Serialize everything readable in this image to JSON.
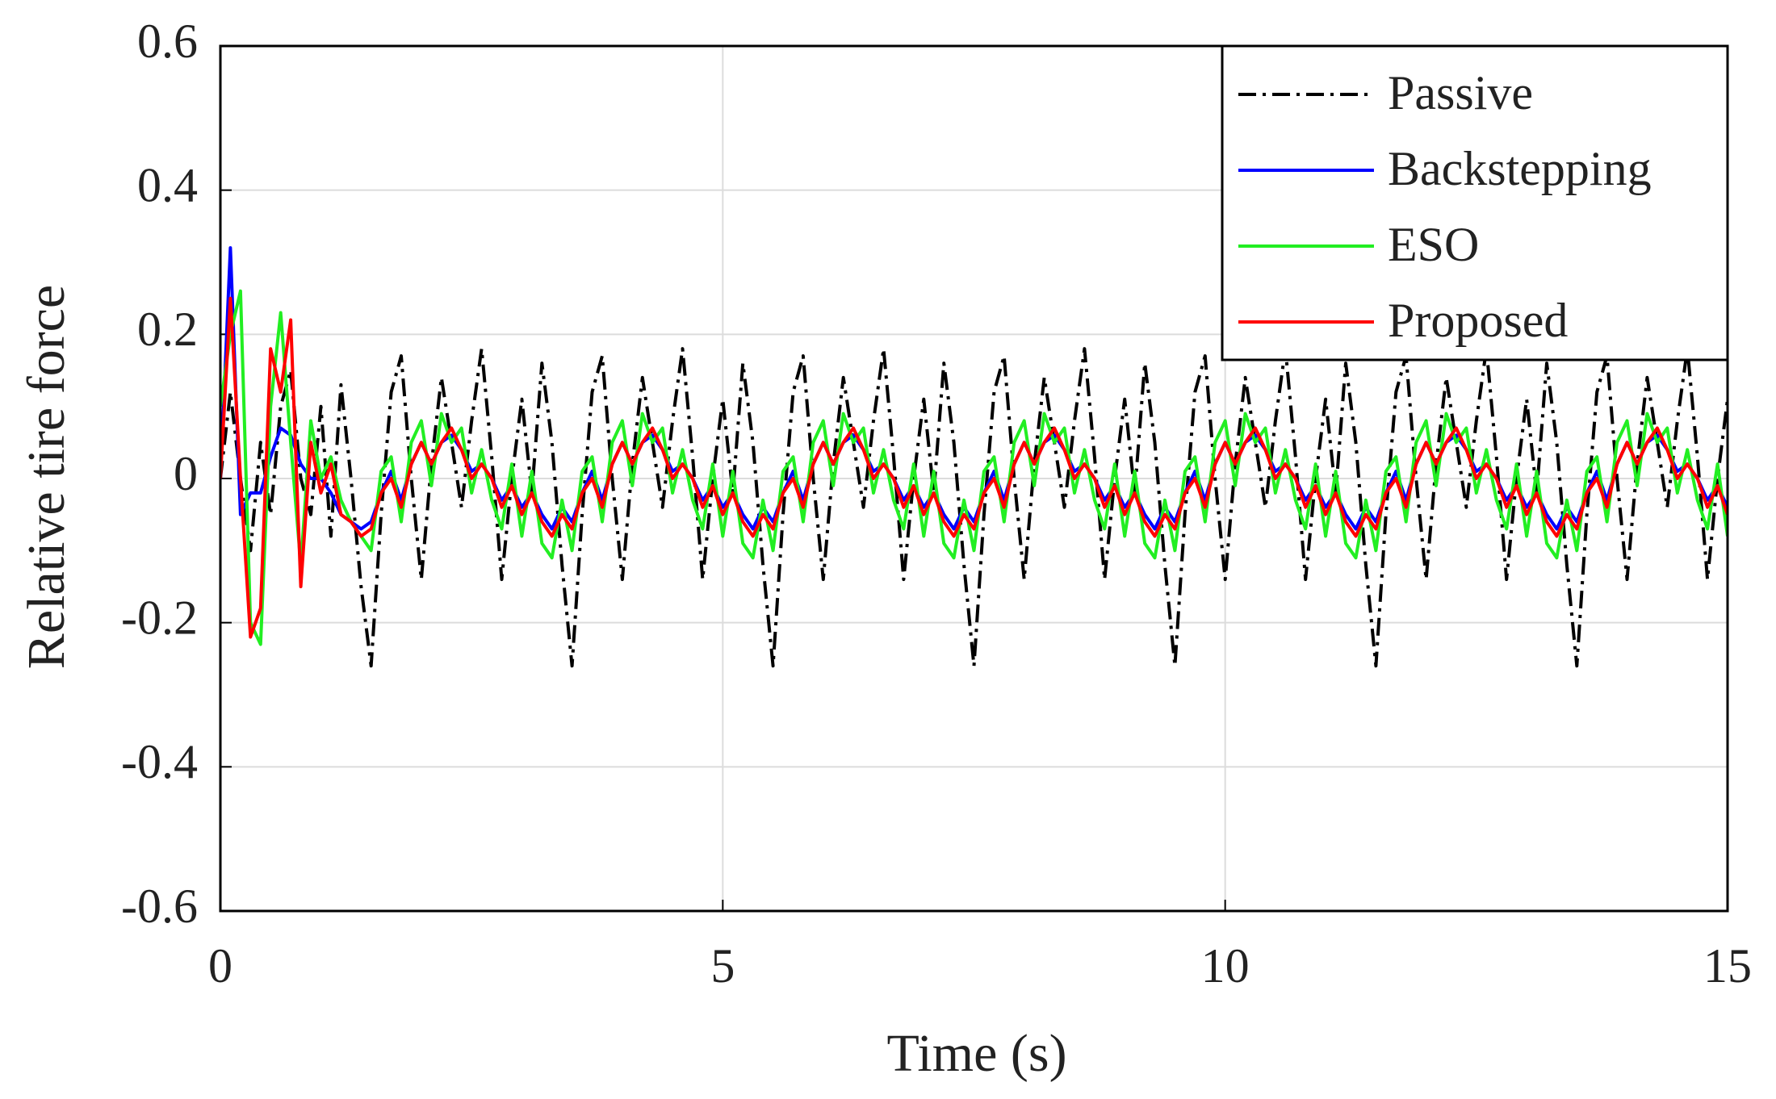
{
  "chart_data": {
    "type": "line",
    "xlabel": "Time (s)",
    "ylabel": "Relative tire force",
    "xlim": [
      0,
      15
    ],
    "xticks": [
      0,
      5,
      10,
      15
    ],
    "ylim": [
      -0.6,
      0.6
    ],
    "yticks": [
      -0.6,
      -0.4,
      -0.2,
      0,
      0.2,
      0.4,
      0.6
    ],
    "grid": true,
    "legend": "upper right",
    "x": [
      0,
      0.1,
      0.2,
      0.3,
      0.4,
      0.5,
      0.6,
      0.7,
      0.8,
      0.9,
      1,
      1.1,
      1.2,
      1.3,
      1.4,
      1.5,
      1.6,
      1.7,
      1.8,
      1.9,
      2,
      2.1,
      2.2,
      2.3,
      2.4,
      2.5,
      2.6,
      2.7,
      2.8,
      2.9,
      3,
      3.1,
      3.2,
      3.3,
      3.4,
      3.5,
      3.6,
      3.7,
      3.8,
      3.9,
      4,
      4.1,
      4.2,
      4.3,
      4.4,
      4.5,
      4.6,
      4.7,
      4.8,
      4.9,
      5,
      5.1,
      5.2,
      5.3,
      5.4,
      5.5,
      5.6,
      5.7,
      5.8,
      5.9,
      6,
      6.1,
      6.2,
      6.3,
      6.4,
      6.5,
      6.6,
      6.7,
      6.8,
      6.9,
      7,
      7.1,
      7.2,
      7.3,
      7.4,
      7.5,
      7.6,
      7.7,
      7.8,
      7.9,
      8,
      8.1,
      8.2,
      8.3,
      8.4,
      8.5,
      8.6,
      8.7,
      8.8,
      8.9,
      9,
      9.1,
      9.2,
      9.3,
      9.4,
      9.5,
      9.6,
      9.7,
      9.8,
      9.9,
      10,
      10.1,
      10.2,
      10.3,
      10.4,
      10.5,
      10.6,
      10.7,
      10.8,
      10.9,
      11,
      11.1,
      11.2,
      11.3,
      11.4,
      11.5,
      11.6,
      11.7,
      11.8,
      11.9,
      12,
      12.1,
      12.2,
      12.3,
      12.4,
      12.5,
      12.6,
      12.7,
      12.8,
      12.9,
      13,
      13.1,
      13.2,
      13.3,
      13.4,
      13.5,
      13.6,
      13.7,
      13.8,
      13.9,
      14,
      14.1,
      14.2,
      14.3,
      14.4,
      14.5,
      14.6,
      14.7,
      14.8,
      14.9,
      15
    ],
    "series": [
      {
        "name": "Passive",
        "color": "#000000",
        "dash": "dashdot",
        "values": [
          0,
          0.12,
          0,
          -0.1,
          0.05,
          -0.05,
          0.1,
          0.15,
          0,
          -0.05,
          0.1,
          -0.08,
          0.13,
          0,
          -0.15,
          -0.26,
          -0.05,
          0.12,
          0.17,
          0,
          -0.14,
          0.02,
          0.14,
          0.05,
          -0.04,
          0.08,
          0.18,
          0.03,
          -0.14,
          0,
          0.11,
          -0.02,
          0.16,
          0.05,
          -0.12,
          -0.26,
          -0.05,
          0.12,
          0.17,
          0,
          -0.14,
          0.02,
          0.14,
          0.05,
          -0.04,
          0.08,
          0.18,
          0.03,
          -0.14,
          0,
          0.11,
          -0.02,
          0.16,
          0.05,
          -0.12,
          -0.26,
          -0.05,
          0.12,
          0.17,
          0,
          -0.14,
          0.02,
          0.14,
          0.05,
          -0.04,
          0.08,
          0.18,
          0.03,
          -0.14,
          0,
          0.11,
          -0.02,
          0.16,
          0.05,
          -0.12,
          -0.26,
          -0.05,
          0.12,
          0.17,
          0,
          -0.14,
          0.02,
          0.14,
          0.05,
          -0.04,
          0.08,
          0.18,
          0.03,
          -0.14,
          0,
          0.11,
          -0.02,
          0.16,
          0.05,
          -0.12,
          -0.26,
          -0.05,
          0.12,
          0.17,
          0,
          -0.14,
          0.02,
          0.14,
          0.05,
          -0.04,
          0.08,
          0.18,
          0.03,
          -0.14,
          0,
          0.11,
          -0.02,
          0.16,
          0.05,
          -0.12,
          -0.26,
          -0.05,
          0.12,
          0.17,
          0,
          -0.14,
          0.02,
          0.14,
          0.05,
          -0.04,
          0.08,
          0.18,
          0.03,
          -0.14,
          0,
          0.11,
          -0.02,
          0.16,
          0.05,
          -0.12,
          -0.26,
          -0.05,
          0.12,
          0.17,
          0,
          -0.14,
          0.02,
          0.14,
          0.05,
          -0.04,
          0.08,
          0.18,
          0.03,
          -0.14,
          0,
          0.11
        ]
      },
      {
        "name": "Backstepping",
        "color": "#0000ff",
        "values": [
          0,
          0.32,
          -0.05,
          -0.02,
          -0.02,
          0.03,
          0.07,
          0.06,
          0.02,
          0,
          0,
          -0.02,
          -0.05,
          -0.06,
          -0.07,
          -0.06,
          -0.02,
          0.01,
          -0.03,
          0.02,
          0.05,
          0.02,
          0.05,
          0.06,
          0.04,
          0.01,
          0.02,
          0,
          -0.03,
          -0.01,
          -0.04,
          -0.02,
          -0.05,
          -0.07,
          -0.04,
          -0.06,
          -0.02,
          0.01,
          -0.03,
          0.02,
          0.05,
          0.02,
          0.05,
          0.06,
          0.04,
          0.01,
          0.02,
          0,
          -0.03,
          -0.01,
          -0.04,
          -0.02,
          -0.05,
          -0.07,
          -0.04,
          -0.06,
          -0.02,
          0.01,
          -0.03,
          0.02,
          0.05,
          0.02,
          0.05,
          0.06,
          0.04,
          0.01,
          0.02,
          0,
          -0.03,
          -0.01,
          -0.04,
          -0.02,
          -0.05,
          -0.07,
          -0.04,
          -0.06,
          -0.02,
          0.01,
          -0.03,
          0.02,
          0.05,
          0.02,
          0.05,
          0.06,
          0.04,
          0.01,
          0.02,
          0,
          -0.03,
          -0.01,
          -0.04,
          -0.02,
          -0.05,
          -0.07,
          -0.04,
          -0.06,
          -0.02,
          0.01,
          -0.03,
          0.02,
          0.05,
          0.02,
          0.05,
          0.06,
          0.04,
          0.01,
          0.02,
          0,
          -0.03,
          -0.01,
          -0.04,
          -0.02,
          -0.05,
          -0.07,
          -0.04,
          -0.06,
          -0.02,
          0.01,
          -0.03,
          0.02,
          0.05,
          0.02,
          0.05,
          0.06,
          0.04,
          0.01,
          0.02,
          0,
          -0.03,
          -0.01,
          -0.04,
          -0.02,
          -0.05,
          -0.07,
          -0.04,
          -0.06,
          -0.02,
          0.01,
          -0.03,
          0.02,
          0.05,
          0.02,
          0.05,
          0.06,
          0.04,
          0.01,
          0.02,
          0,
          -0.03,
          -0.01,
          -0.04
        ]
      },
      {
        "name": "ESO",
        "color": "#22ee22",
        "values": [
          0.1,
          0.2,
          0.26,
          -0.2,
          -0.23,
          0.1,
          0.23,
          0.05,
          -0.12,
          0.08,
          0,
          0.03,
          -0.03,
          -0.06,
          -0.08,
          -0.1,
          0.01,
          0.03,
          -0.06,
          0.05,
          0.08,
          -0.01,
          0.09,
          0.05,
          0.07,
          -0.02,
          0.04,
          -0.03,
          -0.07,
          0.02,
          -0.08,
          0.01,
          -0.09,
          -0.11,
          -0.03,
          -0.1,
          0.01,
          0.03,
          -0.06,
          0.05,
          0.08,
          -0.01,
          0.09,
          0.05,
          0.07,
          -0.02,
          0.04,
          -0.03,
          -0.07,
          0.02,
          -0.08,
          0.01,
          -0.09,
          -0.11,
          -0.03,
          -0.1,
          0.01,
          0.03,
          -0.06,
          0.05,
          0.08,
          -0.01,
          0.09,
          0.05,
          0.07,
          -0.02,
          0.04,
          -0.03,
          -0.07,
          0.02,
          -0.08,
          0.01,
          -0.09,
          -0.11,
          -0.03,
          -0.1,
          0.01,
          0.03,
          -0.06,
          0.05,
          0.08,
          -0.01,
          0.09,
          0.05,
          0.07,
          -0.02,
          0.04,
          -0.03,
          -0.07,
          0.02,
          -0.08,
          0.01,
          -0.09,
          -0.11,
          -0.03,
          -0.1,
          0.01,
          0.03,
          -0.06,
          0.05,
          0.08,
          -0.01,
          0.09,
          0.05,
          0.07,
          -0.02,
          0.04,
          -0.03,
          -0.07,
          0.02,
          -0.08,
          0.01,
          -0.09,
          -0.11,
          -0.03,
          -0.1,
          0.01,
          0.03,
          -0.06,
          0.05,
          0.08,
          -0.01,
          0.09,
          0.05,
          0.07,
          -0.02,
          0.04,
          -0.03,
          -0.07,
          0.02,
          -0.08,
          0.01,
          -0.09,
          -0.11,
          -0.03,
          -0.1,
          0.01,
          0.03,
          -0.06,
          0.05,
          0.08,
          -0.01,
          0.09,
          0.05,
          0.07,
          -0.02,
          0.04,
          -0.03,
          -0.07,
          0.02,
          -0.08
        ]
      },
      {
        "name": "Proposed",
        "color": "#ff0000",
        "values": [
          0,
          0.25,
          0,
          -0.22,
          -0.18,
          0.18,
          0.12,
          0.22,
          -0.15,
          0.05,
          -0.02,
          0.02,
          -0.05,
          -0.06,
          -0.08,
          -0.07,
          -0.02,
          0,
          -0.04,
          0.02,
          0.05,
          0.02,
          0.05,
          0.07,
          0.04,
          0,
          0.02,
          0,
          -0.04,
          -0.01,
          -0.05,
          -0.02,
          -0.06,
          -0.08,
          -0.05,
          -0.07,
          -0.02,
          0,
          -0.04,
          0.02,
          0.05,
          0.02,
          0.05,
          0.07,
          0.04,
          0,
          0.02,
          0,
          -0.04,
          -0.01,
          -0.05,
          -0.02,
          -0.06,
          -0.08,
          -0.05,
          -0.07,
          -0.02,
          0,
          -0.04,
          0.02,
          0.05,
          0.02,
          0.05,
          0.07,
          0.04,
          0,
          0.02,
          0,
          -0.04,
          -0.01,
          -0.05,
          -0.02,
          -0.06,
          -0.08,
          -0.05,
          -0.07,
          -0.02,
          0,
          -0.04,
          0.02,
          0.05,
          0.02,
          0.05,
          0.07,
          0.04,
          0,
          0.02,
          0,
          -0.04,
          -0.01,
          -0.05,
          -0.02,
          -0.06,
          -0.08,
          -0.05,
          -0.07,
          -0.02,
          0,
          -0.04,
          0.02,
          0.05,
          0.02,
          0.05,
          0.07,
          0.04,
          0,
          0.02,
          0,
          -0.04,
          -0.01,
          -0.05,
          -0.02,
          -0.06,
          -0.08,
          -0.05,
          -0.07,
          -0.02,
          0,
          -0.04,
          0.02,
          0.05,
          0.02,
          0.05,
          0.07,
          0.04,
          0,
          0.02,
          0,
          -0.04,
          -0.01,
          -0.05,
          -0.02,
          -0.06,
          -0.08,
          -0.05,
          -0.07,
          -0.02,
          0,
          -0.04,
          0.02,
          0.05,
          0.02,
          0.05,
          0.07,
          0.04,
          0,
          0.02,
          0,
          -0.04,
          -0.01,
          -0.05
        ]
      }
    ]
  }
}
